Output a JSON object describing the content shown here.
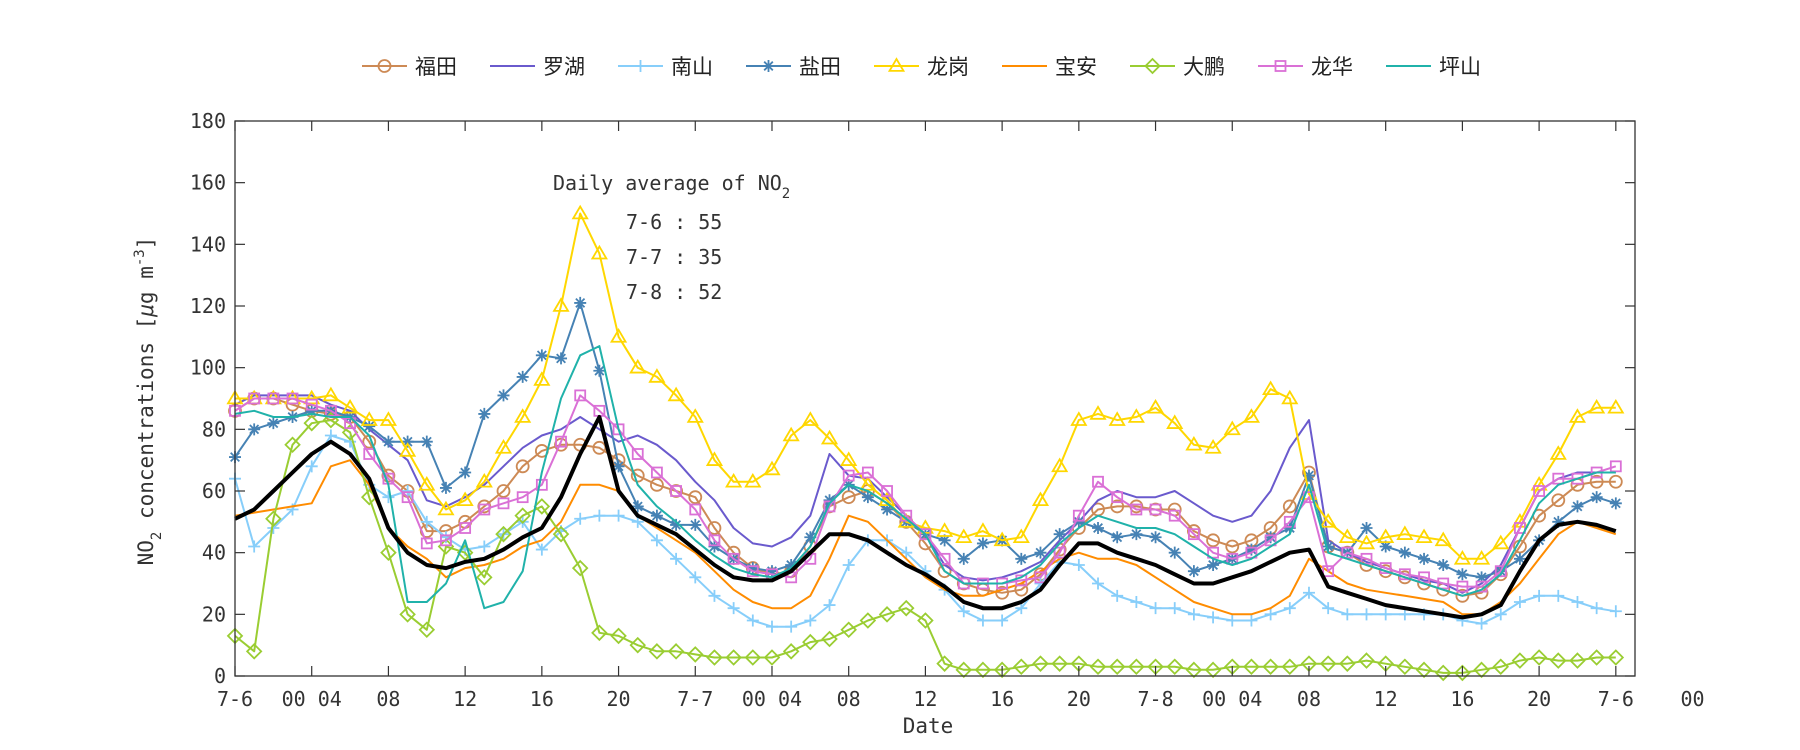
{
  "chart_data": {
    "type": "line",
    "xlabel": "Date",
    "ylim": [
      0,
      180
    ],
    "yticks": [
      0,
      20,
      40,
      60,
      80,
      100,
      120,
      140,
      160,
      180
    ],
    "xlim_hours": [
      0,
      73
    ],
    "xticks": [
      {
        "h": 0,
        "label": "7-6"
      },
      {
        "h": 4,
        "label": "00 04"
      },
      {
        "h": 8,
        "label": "08"
      },
      {
        "h": 12,
        "label": "12"
      },
      {
        "h": 16,
        "label": "16"
      },
      {
        "h": 20,
        "label": "20"
      },
      {
        "h": 24,
        "label": "7-7"
      },
      {
        "h": 28,
        "label": "00 04"
      },
      {
        "h": 32,
        "label": "08"
      },
      {
        "h": 36,
        "label": "12"
      },
      {
        "h": 40,
        "label": "16"
      },
      {
        "h": 44,
        "label": "20"
      },
      {
        "h": 48,
        "label": "7-8"
      },
      {
        "h": 52,
        "label": "00 04"
      },
      {
        "h": 56,
        "label": "08"
      },
      {
        "h": 60,
        "label": "12"
      },
      {
        "h": 64,
        "label": "16"
      },
      {
        "h": 68,
        "label": "20"
      },
      {
        "h": 72,
        "label": "7-6"
      },
      {
        "h": 76,
        "label": "00"
      }
    ],
    "ylabel": {
      "p1": "NO",
      "p1sub": "2",
      "p2": " concentrations [",
      "mu": "μ",
      "p3": "g m",
      "sup": "-3",
      "p4": "]"
    },
    "annotation": {
      "title": "Daily average of NO",
      "title_sub": "2",
      "lines": [
        "7-6 : 55",
        "7-7 : 35",
        "7-8 : 52"
      ]
    },
    "grid": false,
    "legend_position": "top",
    "series": [
      {
        "name": "福田",
        "color": "#cd8a55",
        "marker": "circle",
        "values": [
          86,
          90,
          90,
          88,
          86,
          85,
          84,
          76,
          65,
          60,
          47,
          47,
          50,
          55,
          60,
          68,
          73,
          75,
          75,
          74,
          70,
          65,
          62,
          60,
          58,
          48,
          40,
          35,
          33,
          34,
          42,
          55,
          58,
          60,
          56,
          50,
          43,
          34,
          30,
          28,
          27,
          28,
          33,
          41,
          48,
          54,
          55,
          55,
          54,
          54,
          47,
          44,
          42,
          44,
          48,
          55,
          66,
          42,
          40,
          36,
          34,
          32,
          30,
          28,
          26,
          27,
          33,
          42,
          52,
          57,
          62,
          63,
          63
        ]
      },
      {
        "name": "罗湖",
        "color": "#6a5acd",
        "marker": "none",
        "values": [
          88,
          91,
          91,
          91,
          91,
          88,
          86,
          80,
          75,
          70,
          57,
          55,
          58,
          62,
          68,
          74,
          78,
          80,
          84,
          80,
          76,
          78,
          75,
          70,
          63,
          57,
          48,
          43,
          42,
          45,
          52,
          72,
          65,
          64,
          58,
          52,
          46,
          36,
          32,
          31,
          32,
          34,
          37,
          44,
          50,
          57,
          60,
          58,
          58,
          60,
          56,
          52,
          50,
          52,
          60,
          74,
          83,
          44,
          40,
          37,
          35,
          33,
          31,
          30,
          27,
          30,
          36,
          48,
          60,
          64,
          66,
          66,
          66
        ]
      },
      {
        "name": "南山",
        "color": "#87cefa",
        "marker": "plus",
        "values": [
          64,
          42,
          48,
          54,
          68,
          78,
          76,
          62,
          58,
          60,
          50,
          45,
          41,
          42,
          46,
          50,
          41,
          47,
          51,
          52,
          52,
          50,
          44,
          38,
          32,
          26,
          22,
          18,
          16,
          16,
          18,
          23,
          36,
          44,
          44,
          40,
          34,
          28,
          21,
          18,
          18,
          22,
          30,
          37,
          36,
          30,
          26,
          24,
          22,
          22,
          20,
          19,
          18,
          18,
          20,
          22,
          27,
          22,
          20,
          20,
          20,
          20,
          20,
          20,
          18,
          17,
          20,
          24,
          26,
          26,
          24,
          22,
          21
        ]
      },
      {
        "name": "盐田",
        "color": "#4682b4",
        "marker": "asterisk",
        "values": [
          71,
          80,
          82,
          84,
          86,
          86,
          84,
          81,
          76,
          76,
          76,
          61,
          66,
          85,
          91,
          97,
          104,
          103,
          121,
          99,
          68,
          55,
          52,
          49,
          49,
          42,
          38,
          35,
          34,
          36,
          45,
          57,
          62,
          58,
          54,
          50,
          46,
          44,
          38,
          43,
          44,
          38,
          40,
          46,
          50,
          48,
          45,
          46,
          45,
          40,
          34,
          36,
          38,
          41,
          45,
          48,
          65,
          42,
          40,
          48,
          42,
          40,
          38,
          36,
          33,
          32,
          34,
          38,
          44,
          50,
          55,
          58,
          56
        ]
      },
      {
        "name": "龙岗",
        "color": "#ffd700",
        "marker": "triangle",
        "values": [
          90,
          90,
          90,
          90,
          90,
          91,
          87,
          83,
          83,
          73,
          62,
          54,
          57,
          63,
          74,
          84,
          96,
          120,
          150,
          137,
          110,
          100,
          97,
          91,
          84,
          70,
          63,
          63,
          67,
          78,
          83,
          77,
          70,
          62,
          57,
          50,
          48,
          47,
          45,
          47,
          44,
          45,
          57,
          68,
          83,
          85,
          83,
          84,
          87,
          82,
          75,
          74,
          80,
          84,
          93,
          90,
          59,
          50,
          45,
          43,
          45,
          46,
          45,
          44,
          38,
          38,
          43,
          50,
          62,
          72,
          84,
          87,
          87
        ]
      },
      {
        "name": "宝安",
        "color": "#ff8c00",
        "marker": "none",
        "values": [
          52,
          53,
          54,
          55,
          56,
          68,
          70,
          62,
          48,
          42,
          38,
          32,
          35,
          36,
          38,
          42,
          44,
          50,
          62,
          62,
          60,
          52,
          48,
          44,
          40,
          34,
          28,
          24,
          22,
          22,
          26,
          38,
          52,
          50,
          44,
          38,
          32,
          28,
          26,
          26,
          28,
          30,
          34,
          38,
          40,
          38,
          38,
          36,
          32,
          28,
          24,
          22,
          20,
          20,
          22,
          26,
          38,
          34,
          30,
          28,
          27,
          26,
          25,
          24,
          20,
          20,
          24,
          30,
          38,
          46,
          50,
          48,
          46
        ]
      },
      {
        "name": "大鹏",
        "color": "#9acd32",
        "marker": "diamond",
        "values": [
          13,
          8,
          51,
          75,
          82,
          83,
          79,
          58,
          40,
          20,
          15,
          42,
          40,
          32,
          46,
          52,
          55,
          46,
          35,
          14,
          13,
          10,
          8,
          8,
          7,
          6,
          6,
          6,
          6,
          8,
          11,
          12,
          15,
          18,
          20,
          22,
          18,
          4,
          2,
          2,
          2,
          3,
          4,
          4,
          4,
          3,
          3,
          3,
          3,
          3,
          2,
          2,
          3,
          3,
          3,
          3,
          4,
          4,
          4,
          5,
          4,
          3,
          2,
          1,
          1,
          2,
          3,
          5,
          6,
          5,
          5,
          6,
          6
        ]
      },
      {
        "name": "龙华",
        "color": "#da70d6",
        "marker": "square",
        "values": [
          86,
          90,
          90,
          90,
          88,
          86,
          82,
          72,
          64,
          58,
          43,
          44,
          48,
          54,
          56,
          58,
          62,
          76,
          91,
          86,
          80,
          72,
          66,
          60,
          54,
          44,
          38,
          34,
          33,
          32,
          38,
          55,
          65,
          66,
          60,
          52,
          46,
          38,
          30,
          30,
          30,
          31,
          32,
          40,
          52,
          63,
          58,
          54,
          54,
          52,
          46,
          40,
          38,
          40,
          44,
          50,
          58,
          34,
          40,
          38,
          35,
          33,
          32,
          30,
          29,
          29,
          34,
          48,
          60,
          64,
          64,
          66,
          68
        ]
      },
      {
        "name": "坪山",
        "color": "#20b2aa",
        "marker": "none",
        "values": [
          85,
          86,
          84,
          84,
          85,
          84,
          84,
          78,
          62,
          24,
          24,
          30,
          44,
          22,
          24,
          34,
          66,
          90,
          104,
          107,
          80,
          62,
          55,
          50,
          44,
          39,
          35,
          33,
          32,
          35,
          42,
          56,
          62,
          60,
          56,
          51,
          46,
          34,
          30,
          30,
          30,
          32,
          36,
          43,
          48,
          52,
          50,
          48,
          48,
          46,
          42,
          38,
          36,
          38,
          42,
          46,
          62,
          40,
          38,
          36,
          34,
          32,
          30,
          28,
          26,
          28,
          33,
          44,
          56,
          62,
          64,
          66,
          66
        ]
      },
      {
        "name": "",
        "color": "#000000",
        "marker": "none",
        "values": [
          51,
          54,
          60,
          66,
          72,
          76,
          72,
          64,
          48,
          40,
          36,
          35,
          37,
          38,
          41,
          45,
          48,
          58,
          72,
          84,
          60,
          52,
          49,
          46,
          41,
          36,
          32,
          31,
          31,
          34,
          40,
          46,
          46,
          44,
          40,
          36,
          33,
          29,
          24,
          22,
          22,
          24,
          28,
          36,
          43,
          43,
          40,
          38,
          36,
          33,
          30,
          30,
          32,
          34,
          37,
          40,
          41,
          29,
          27,
          25,
          23,
          22,
          21,
          20,
          19,
          20,
          23,
          34,
          44,
          49,
          50,
          49,
          47
        ]
      }
    ]
  }
}
